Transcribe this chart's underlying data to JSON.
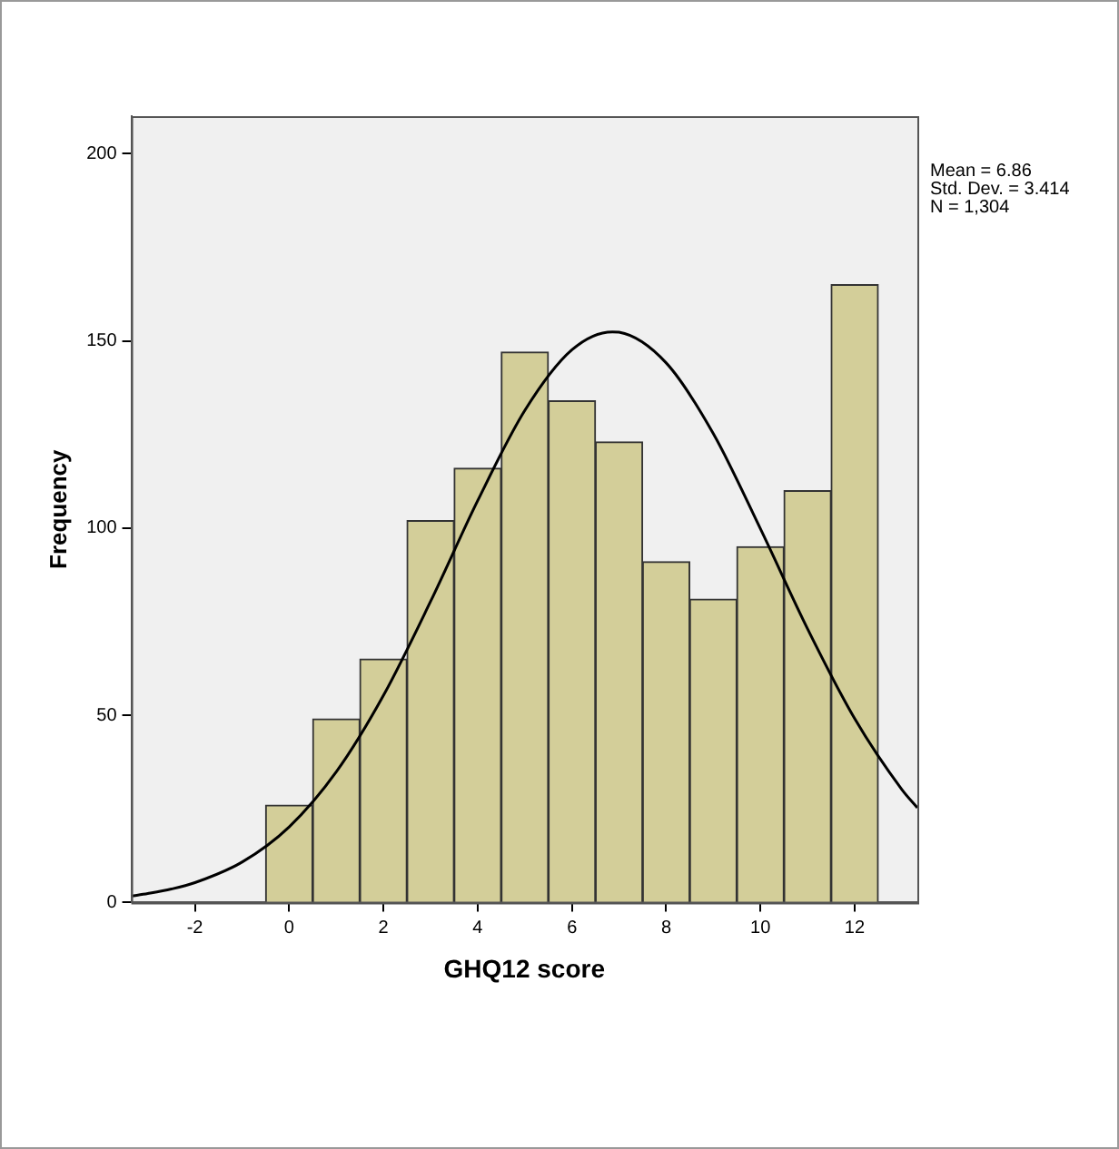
{
  "chart_data": {
    "type": "histogram",
    "xlabel": "GHQ12 score",
    "ylabel": "Frequency",
    "bins": [
      -0.5,
      0.5,
      1.5,
      2.5,
      3.5,
      4.5,
      5.5,
      6.5,
      7.5,
      8.5,
      9.5,
      10.5,
      11.5,
      12.5
    ],
    "series": [
      {
        "color": "#d3ce99",
        "values": [
          26,
          49,
          65,
          102,
          116,
          147,
          134,
          123,
          91,
          81,
          95,
          110,
          165
        ]
      },
      {
        "type": "line",
        "color": "#000000",
        "x": [
          -3.35,
          -3,
          -2.5,
          -2,
          -1,
          0,
          1,
          2,
          3,
          4,
          5,
          6,
          6.86,
          7,
          8,
          9,
          10,
          11,
          12,
          13,
          13.33
        ],
        "values": [
          1.7,
          2.4,
          3.6,
          5.3,
          10.8,
          20.2,
          34.9,
          55.3,
          80.4,
          107.3,
          131.4,
          147.6,
          152.4,
          152.3,
          144.1,
          125.2,
          99.8,
          73.1,
          49.1,
          30.2,
          25.3
        ]
      }
    ],
    "marker": "none",
    "xlim": [
      -3.35,
      13.33
    ],
    "xticks": [
      -2,
      0,
      2,
      4,
      6,
      8,
      10,
      12
    ],
    "ylim": [
      0,
      210
    ],
    "yticks": [
      0,
      50,
      100,
      150,
      200
    ],
    "annotations": [
      "Mean = 6.86",
      "Std. Dev. = 3.414",
      "N = 1,304"
    ]
  }
}
